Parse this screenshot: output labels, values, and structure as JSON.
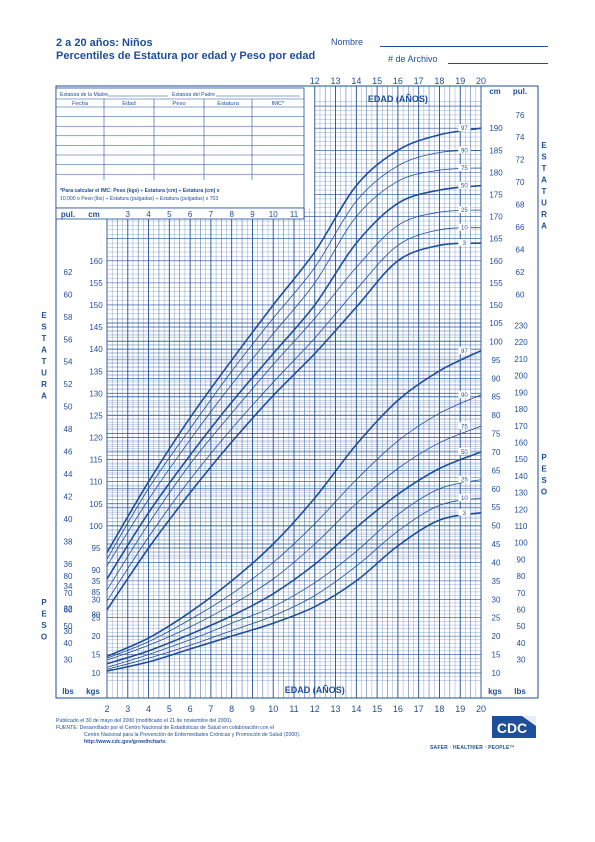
{
  "header": {
    "title_line1": "2 a 20 años: Niños",
    "title_line2": "Percentiles de Estatura por edad y Peso por edad",
    "name_label": "Nombre",
    "record_label": "# de Archivo"
  },
  "record_table": {
    "mother_height_label": "Estatura de la Madre",
    "father_height_label": "Estatura del Padre",
    "columns": [
      "Fecha",
      "Edad",
      "Peso",
      "Estatura",
      "IMC*"
    ],
    "bmi_note_line1": "*Para calcular el IMC: Peso (kgs) ÷ Estatura (cm) ÷ Estatura (cm) x",
    "bmi_note_line2": "10,000 o Peso (lbs) ÷ Estatura (pulgadas) ÷ Estatura (pulgadas) x 703"
  },
  "footer": {
    "line1": "Publicado el 30 de mayo del 2000 (modificado el 21 de noviembre del 2000).",
    "line2": "FUENTE: Desarrollado por el Centro Nacional de Estadísticas de Salud en colaboración con el",
    "line3": "Centro Nacional para la Prevención de Enfermedades Crónicas y Promoción de Salud (2000).",
    "line4": "http://www.cdc.gov/growthcharts",
    "logo_text": "CDC",
    "tagline": "SAFER · HEALTHIER · PEOPLE™"
  },
  "colors": {
    "ink": "#1f4e9a",
    "grid": "#1f4e9a"
  },
  "chart_data": {
    "type": "line",
    "x_label": "EDAD (AÑOS)",
    "x_ticks": [
      2,
      3,
      4,
      5,
      6,
      7,
      8,
      9,
      10,
      11,
      12,
      13,
      14,
      15,
      16,
      17,
      18,
      19,
      20
    ],
    "x_ticks_top": [
      12,
      13,
      14,
      15,
      16,
      17,
      18,
      19,
      20
    ],
    "x_ticks_inset": [
      3,
      4,
      5,
      6,
      7,
      8,
      9,
      10,
      11
    ],
    "grid": true,
    "stature": {
      "ylabel": "ESTATURA",
      "unit_left": "cm",
      "unit_left_alt": "pul.",
      "unit_right": "cm",
      "unit_right_alt": "pul.",
      "ylim": [
        76,
        200
      ],
      "cm_ticks": [
        80,
        85,
        90,
        95,
        100,
        105,
        110,
        115,
        120,
        125,
        130,
        135,
        140,
        145,
        150,
        155,
        160,
        165,
        170,
        175,
        180,
        185,
        190
      ],
      "in_ticks_left": [
        30,
        32,
        34,
        36,
        38,
        40,
        42,
        44,
        46,
        48,
        50,
        52,
        54,
        56,
        58,
        60,
        62
      ],
      "in_ticks_right": [
        60,
        62,
        64,
        66,
        68,
        70,
        72,
        74,
        76
      ],
      "x": [
        2,
        4,
        6,
        8,
        10,
        12,
        14,
        16,
        18,
        20
      ],
      "series": [
        {
          "name": "3",
          "values": [
            81.0,
            95.0,
            107.5,
            119.0,
            129.5,
            139.0,
            149.5,
            160.0,
            163.5,
            164.0
          ]
        },
        {
          "name": "10",
          "values": [
            83.0,
            97.5,
            110.5,
            122.0,
            132.5,
            142.5,
            153.5,
            163.5,
            167.0,
            167.5
          ]
        },
        {
          "name": "25",
          "values": [
            85.5,
            100.5,
            114.0,
            125.5,
            136.5,
            147.0,
            158.5,
            168.0,
            171.0,
            171.5
          ]
        },
        {
          "name": "50",
          "values": [
            88.0,
            103.0,
            116.0,
            128.0,
            139.0,
            150.0,
            164.0,
            173.0,
            176.0,
            177.0
          ]
        },
        {
          "name": "75",
          "values": [
            91.0,
            106.0,
            119.5,
            132.0,
            143.5,
            155.0,
            170.0,
            178.0,
            180.5,
            181.0
          ]
        },
        {
          "name": "90",
          "values": [
            92.5,
            108.5,
            122.0,
            135.0,
            147.0,
            158.5,
            173.5,
            181.5,
            184.5,
            185.0
          ]
        },
        {
          "name": "97",
          "values": [
            94.0,
            110.0,
            124.5,
            137.5,
            150.0,
            162.0,
            177.0,
            185.0,
            188.5,
            190.0
          ]
        }
      ]
    },
    "weight": {
      "ylabel": "PESO",
      "unit_left": "kgs",
      "unit_left_alt": "lbs",
      "unit_right": "kgs",
      "unit_right_alt": "lbs",
      "ylim": [
        7,
        108
      ],
      "kg_ticks": [
        10,
        15,
        20,
        25,
        30,
        35,
        40,
        45,
        50,
        55,
        60,
        65,
        70,
        75,
        80,
        85,
        90,
        95,
        100,
        105
      ],
      "lb_ticks_left": [
        30,
        40,
        50,
        60,
        70,
        80
      ],
      "lb_ticks_right": [
        30,
        40,
        50,
        60,
        70,
        80,
        90,
        100,
        110,
        120,
        130,
        140,
        150,
        160,
        170,
        180,
        190,
        200,
        210,
        220,
        230
      ],
      "x": [
        2,
        4,
        6,
        8,
        10,
        12,
        14,
        16,
        18,
        20
      ],
      "series": [
        {
          "name": "3",
          "values": [
            10.5,
            13.0,
            16.5,
            20.0,
            23.5,
            28.0,
            35.0,
            44.5,
            51.5,
            53.5
          ]
        },
        {
          "name": "10",
          "values": [
            11.0,
            14.0,
            17.5,
            21.5,
            25.5,
            31.0,
            39.0,
            48.5,
            55.5,
            57.5
          ]
        },
        {
          "name": "25",
          "values": [
            11.5,
            15.0,
            19.0,
            23.5,
            28.0,
            34.5,
            43.0,
            53.0,
            60.0,
            62.5
          ]
        },
        {
          "name": "50",
          "values": [
            12.5,
            16.0,
            20.5,
            25.5,
            31.5,
            39.5,
            49.5,
            58.5,
            65.5,
            70.0
          ]
        },
        {
          "name": "75",
          "values": [
            13.5,
            17.5,
            22.5,
            28.5,
            35.5,
            45.0,
            56.0,
            65.5,
            72.5,
            77.0
          ]
        },
        {
          "name": "90",
          "values": [
            14.0,
            18.5,
            24.5,
            31.5,
            40.0,
            50.5,
            62.5,
            73.0,
            80.5,
            85.5
          ]
        },
        {
          "name": "97",
          "values": [
            14.5,
            19.5,
            26.5,
            35.0,
            45.0,
            57.5,
            72.0,
            84.0,
            92.0,
            97.5
          ]
        }
      ]
    }
  }
}
